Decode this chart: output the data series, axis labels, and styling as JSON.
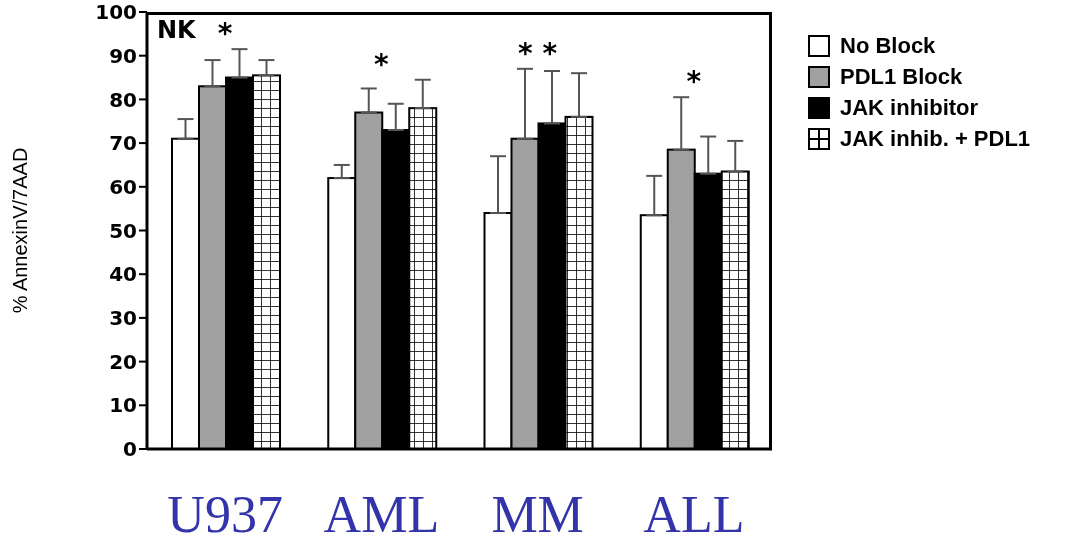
{
  "chart_data": {
    "type": "bar",
    "categories": [
      "U937",
      "AML",
      "MM",
      "ALL"
    ],
    "ylabel": "% AnnexinV/7AAD",
    "ylim": [
      0,
      100
    ],
    "yticks": [
      0,
      10,
      20,
      30,
      40,
      50,
      60,
      70,
      80,
      90,
      100
    ],
    "grid": false,
    "legend": "top right",
    "series": [
      {
        "name": "No Block",
        "color": "#ffffff",
        "values": [
          71,
          62,
          54,
          53.5
        ],
        "errors": [
          [
            71,
            75.5
          ],
          [
            62,
            65
          ],
          [
            54,
            67
          ],
          [
            53.5,
            62.5
          ]
        ]
      },
      {
        "name": "PDL1 Block",
        "color": "#a0a0a0",
        "values": [
          83,
          77,
          71,
          68.5
        ],
        "errors": [
          [
            83,
            89
          ],
          [
            77,
            82.5
          ],
          [
            71,
            87
          ],
          [
            68.5,
            80.5
          ]
        ]
      },
      {
        "name": "JAK inhibitor",
        "color": "#000000",
        "values": [
          85,
          73,
          74.5,
          63
        ],
        "errors": [
          [
            85,
            91.5
          ],
          [
            73,
            79
          ],
          [
            74.5,
            86.5
          ],
          [
            63,
            71.5
          ]
        ]
      },
      {
        "name": "JAK inhib. + PDL1",
        "color": "#ffffff",
        "values": [
          85.5,
          78,
          76,
          63.5
        ],
        "errors": [
          [
            85.5,
            89
          ],
          [
            78,
            84.5
          ],
          [
            76,
            86
          ],
          [
            63.5,
            70.5
          ]
        ]
      }
    ],
    "annotations": [
      "NK",
      "*",
      "*",
      "* *",
      "*"
    ]
  }
}
